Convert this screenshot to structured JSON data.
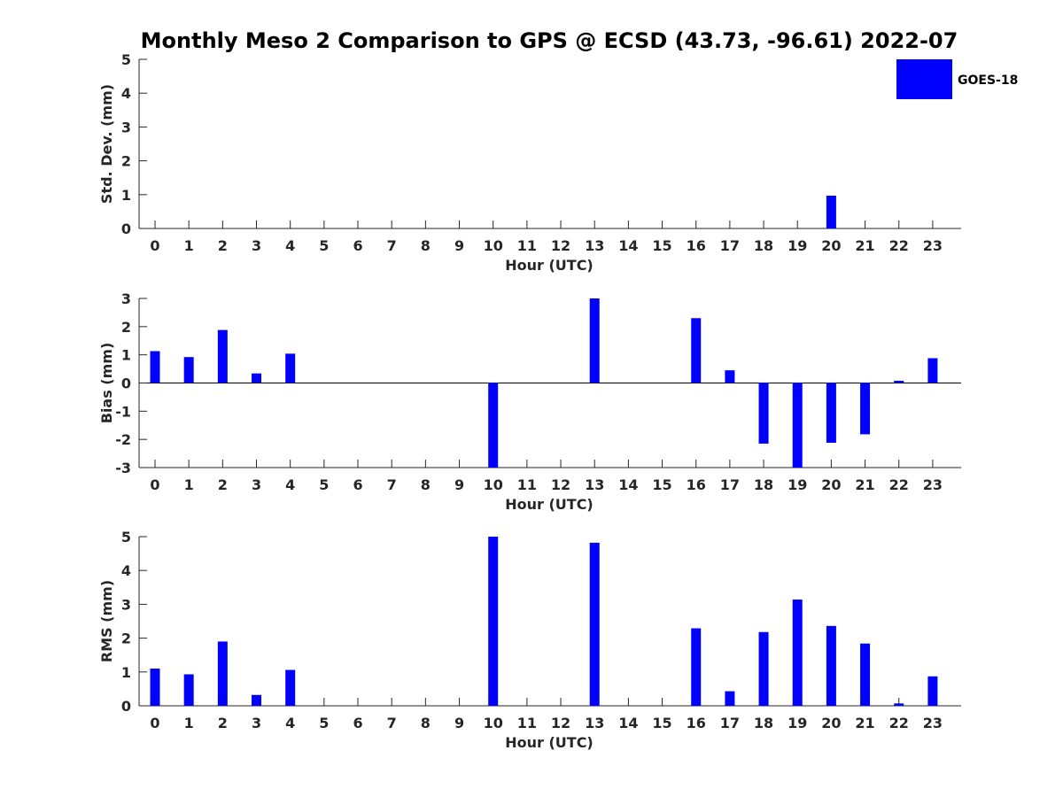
{
  "chart_data": {
    "type": "bar",
    "title": "Monthly Meso 2 Comparison to GPS @ ECSD (43.73, -96.61) 2022-07",
    "legend": {
      "label": "GOES-18",
      "color": "#0000ff",
      "placement": "top-right"
    },
    "categories": [
      "0",
      "1",
      "2",
      "3",
      "4",
      "5",
      "6",
      "7",
      "8",
      "9",
      "10",
      "11",
      "12",
      "13",
      "14",
      "15",
      "16",
      "17",
      "18",
      "19",
      "20",
      "21",
      "22",
      "23"
    ],
    "panels": [
      {
        "name": "std",
        "ylabel": "Std. Dev. (mm)",
        "xlabel": "Hour (UTC)",
        "ylim": [
          0,
          5
        ],
        "yticks": [
          0,
          1,
          2,
          3,
          4,
          5
        ],
        "series": [
          {
            "name": "GOES-18",
            "values": [
              null,
              null,
              null,
              null,
              null,
              null,
              null,
              null,
              null,
              null,
              null,
              null,
              null,
              null,
              null,
              null,
              null,
              null,
              null,
              null,
              0.97,
              null,
              null,
              null
            ]
          }
        ]
      },
      {
        "name": "bias",
        "ylabel": "Bias (mm)",
        "xlabel": "Hour (UTC)",
        "ylim": [
          -3,
          3
        ],
        "yticks": [
          -3,
          -2,
          -1,
          0,
          1,
          2,
          3
        ],
        "zeroline": true,
        "series": [
          {
            "name": "GOES-18",
            "values": [
              1.13,
              0.92,
              1.88,
              0.34,
              1.04,
              null,
              null,
              null,
              null,
              null,
              -3.0,
              null,
              null,
              3.0,
              null,
              null,
              2.3,
              0.45,
              -2.15,
              -3.0,
              -2.12,
              -1.82,
              0.08,
              0.88
            ]
          }
        ]
      },
      {
        "name": "rms",
        "ylabel": "RMS (mm)",
        "xlabel": "Hour (UTC)",
        "ylim": [
          0,
          5
        ],
        "yticks": [
          0,
          1,
          2,
          3,
          4,
          5
        ],
        "series": [
          {
            "name": "GOES-18",
            "values": [
              1.1,
              0.93,
              1.9,
              0.32,
              1.06,
              null,
              null,
              null,
              null,
              null,
              5.0,
              null,
              null,
              4.82,
              null,
              null,
              2.29,
              0.43,
              2.18,
              3.14,
              2.36,
              1.84,
              0.07,
              0.87
            ]
          }
        ]
      }
    ]
  }
}
